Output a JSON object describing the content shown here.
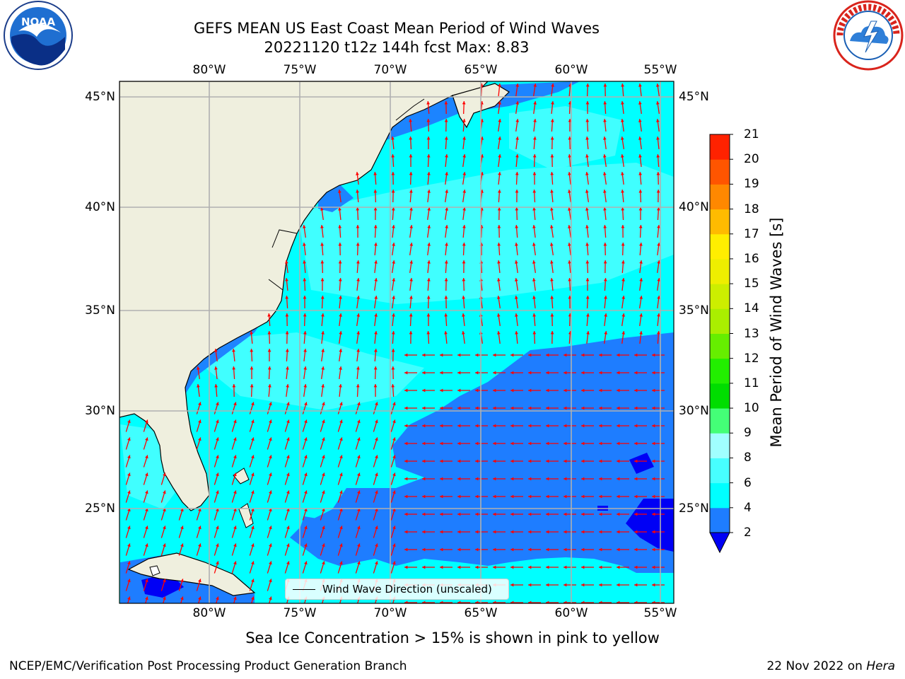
{
  "title": {
    "line1": "GEFS MEAN US East Coast Mean Period of Wind Waves",
    "line2": "20221120 t12z 144h fcst    Max: 8.83"
  },
  "map": {
    "lon_labels": [
      "80°W",
      "75°W",
      "70°W",
      "65°W",
      "60°W",
      "55°W"
    ],
    "lon_values": [
      -80,
      -75,
      -70,
      -65,
      -60,
      -55
    ],
    "lat_labels": [
      "45°N",
      "40°N",
      "35°N",
      "30°N",
      "25°N"
    ],
    "lat_values": [
      45,
      40,
      35,
      30,
      25
    ],
    "extent": {
      "lon": [
        -85,
        -54
      ],
      "lat": [
        20.5,
        46
      ]
    },
    "gridlines": true,
    "colors": {
      "land": "#efefde",
      "band_2_4": "#1e7dff",
      "band_0_2": "#0000f5",
      "band_4_6": "#00ffff",
      "band_6_8": "#47ffff",
      "arrow": "#ff0000",
      "grid": "#b0b0b0"
    }
  },
  "colorbar": {
    "label": "Mean Period of Wind Waves [s]",
    "ticks": [
      "2",
      "4",
      "6",
      "8",
      "9",
      "10",
      "11",
      "12",
      "13",
      "14",
      "15",
      "16",
      "17",
      "18",
      "19",
      "20",
      "21"
    ],
    "colors": [
      "#1e7dff",
      "#00ffff",
      "#47ffff",
      "#a0ffff",
      "#44ff77",
      "#00dd00",
      "#22ee00",
      "#66ee00",
      "#aaee00",
      "#ccee00",
      "#eeee00",
      "#ffee00",
      "#ffbb00",
      "#ff8800",
      "#ff5500",
      "#ff2200",
      "#ff0000"
    ],
    "under_color": "#0000f5"
  },
  "legend": {
    "label": "Wind Wave Direction (unscaled)"
  },
  "sea_ice_note": "Sea Ice Concentration > 15% is shown in pink to yellow",
  "footer": {
    "left": "NCEP/EMC/Verification Post Processing Product Generation Branch",
    "right_date": "22 Nov 2022 on ",
    "right_host": "Hera"
  },
  "logos": {
    "left": "noaa-logo",
    "right": "nws-logo",
    "noaa_text": "NOAA"
  }
}
